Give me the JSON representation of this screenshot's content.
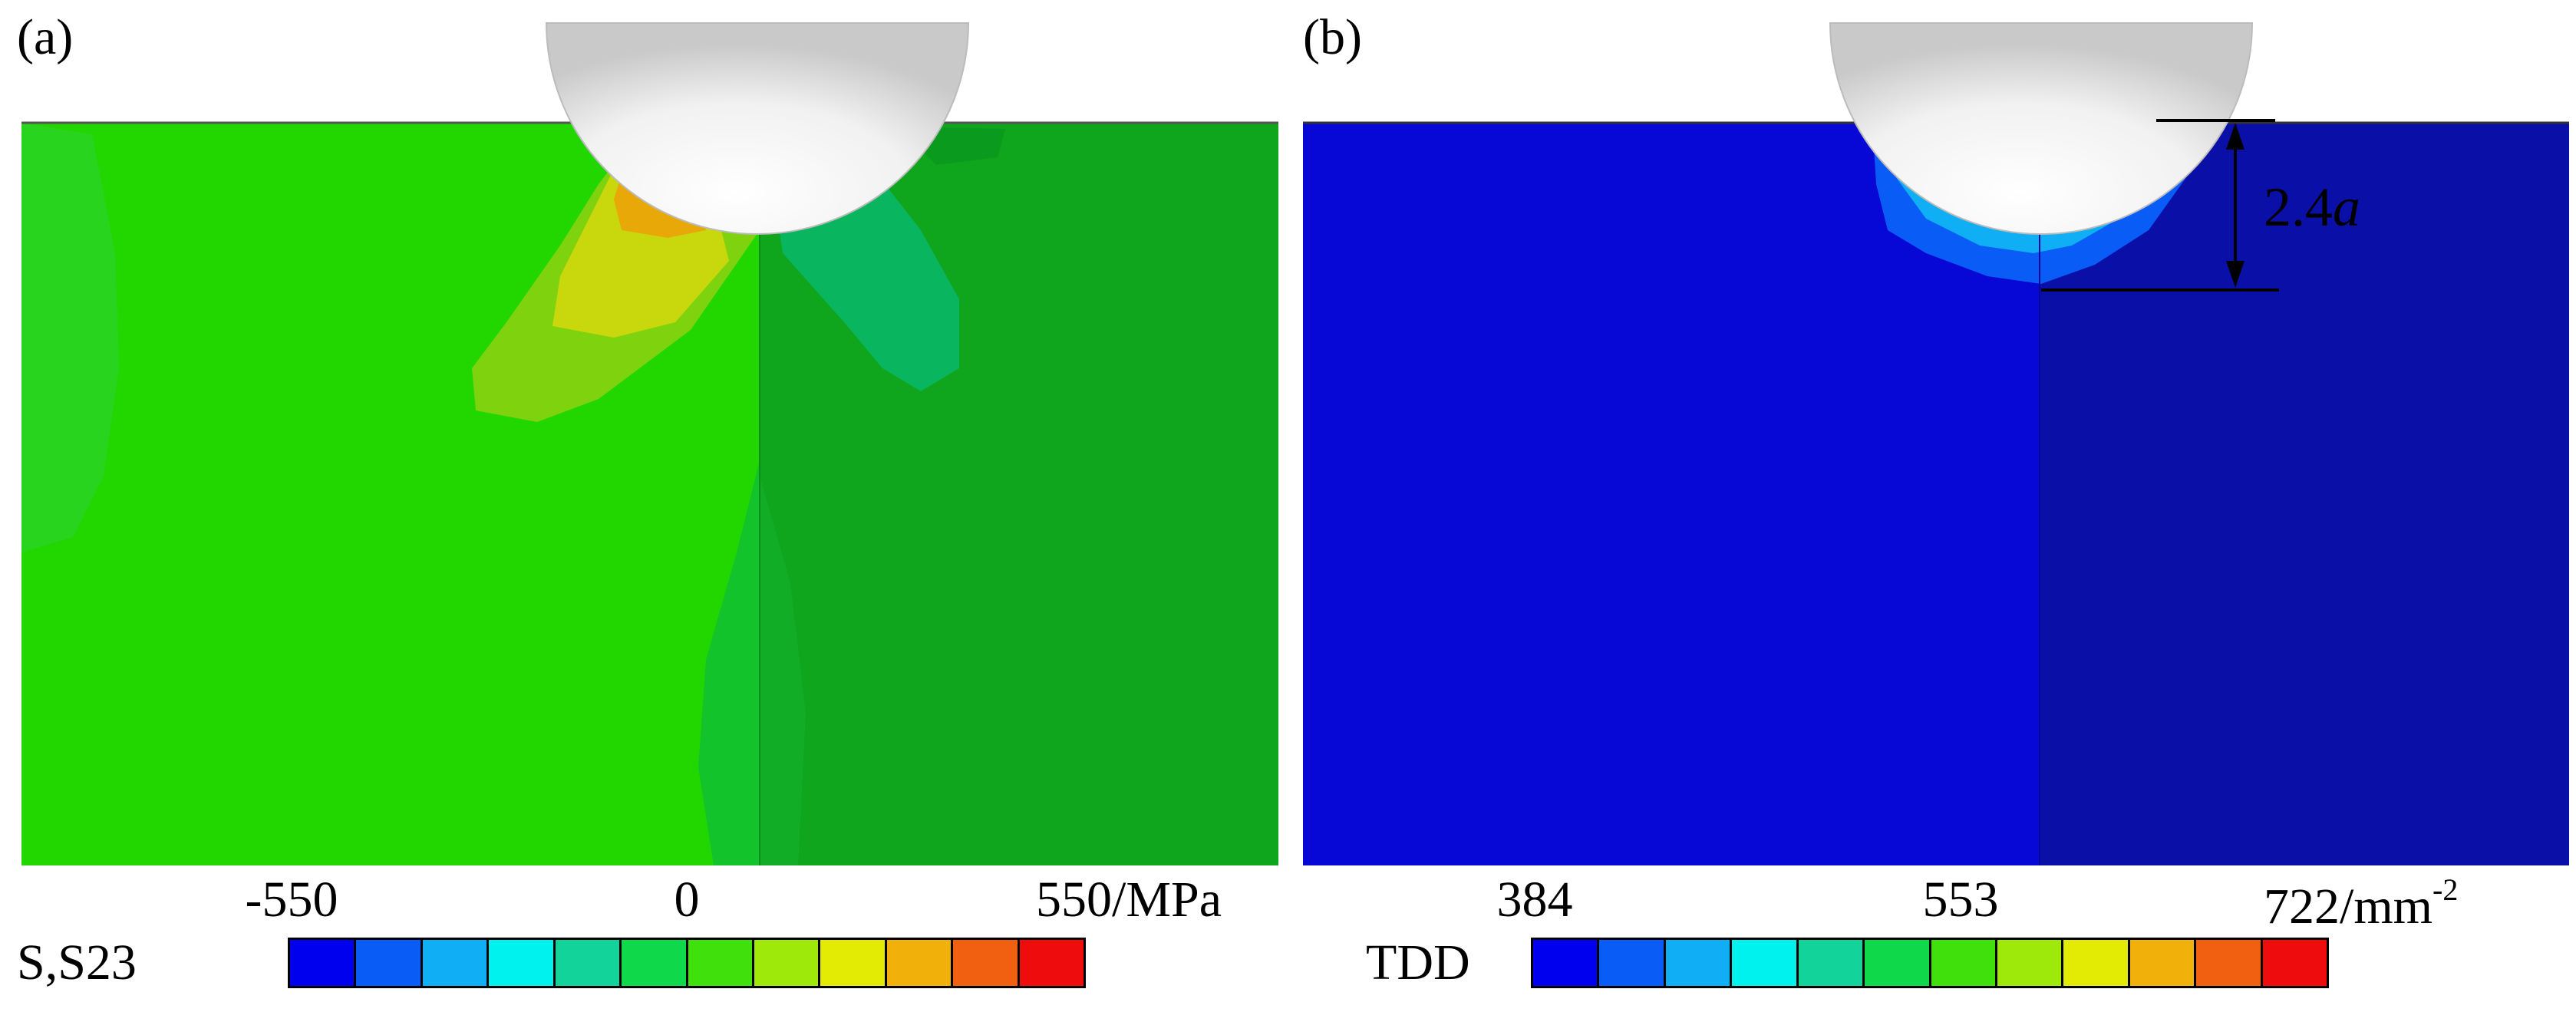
{
  "panel_a": {
    "label": "(a)",
    "legend": {
      "name": "S,S23",
      "tick_min": "-550",
      "tick_mid": "0",
      "tick_max": "550",
      "unit": "/MPa",
      "colors": [
        "#0000ee",
        "#0a5cf7",
        "#10aef5",
        "#00f2ee",
        "#12d39a",
        "#0fd84a",
        "#3fe00c",
        "#9ee80a",
        "#e3ea04",
        "#f2b00a",
        "#f06010",
        "#ee0c0c"
      ]
    },
    "field_colors": {
      "left": "#22d600",
      "right": "#0fa51d",
      "hot": "#e8a808",
      "mid": "#c9d80c",
      "ring": "#7fd20e",
      "cool": "#0ab560"
    }
  },
  "panel_b": {
    "label": "(b)",
    "dimension": "2.4",
    "dimension_symbol": "a",
    "legend": {
      "name": "TDD",
      "tick_min": "384",
      "tick_mid": "553",
      "tick_max": "722",
      "unit": "/mm",
      "unit_exp": "-2",
      "colors": [
        "#0000ee",
        "#0a5cf7",
        "#10aef5",
        "#00f2ee",
        "#12d39a",
        "#0fd84a",
        "#3fe00c",
        "#9ee80a",
        "#e3ea04",
        "#f2b00a",
        "#f06010",
        "#ee0c0c"
      ]
    },
    "field_colors": {
      "left": "#0808d6",
      "right": "#0a0fa8"
    }
  }
}
